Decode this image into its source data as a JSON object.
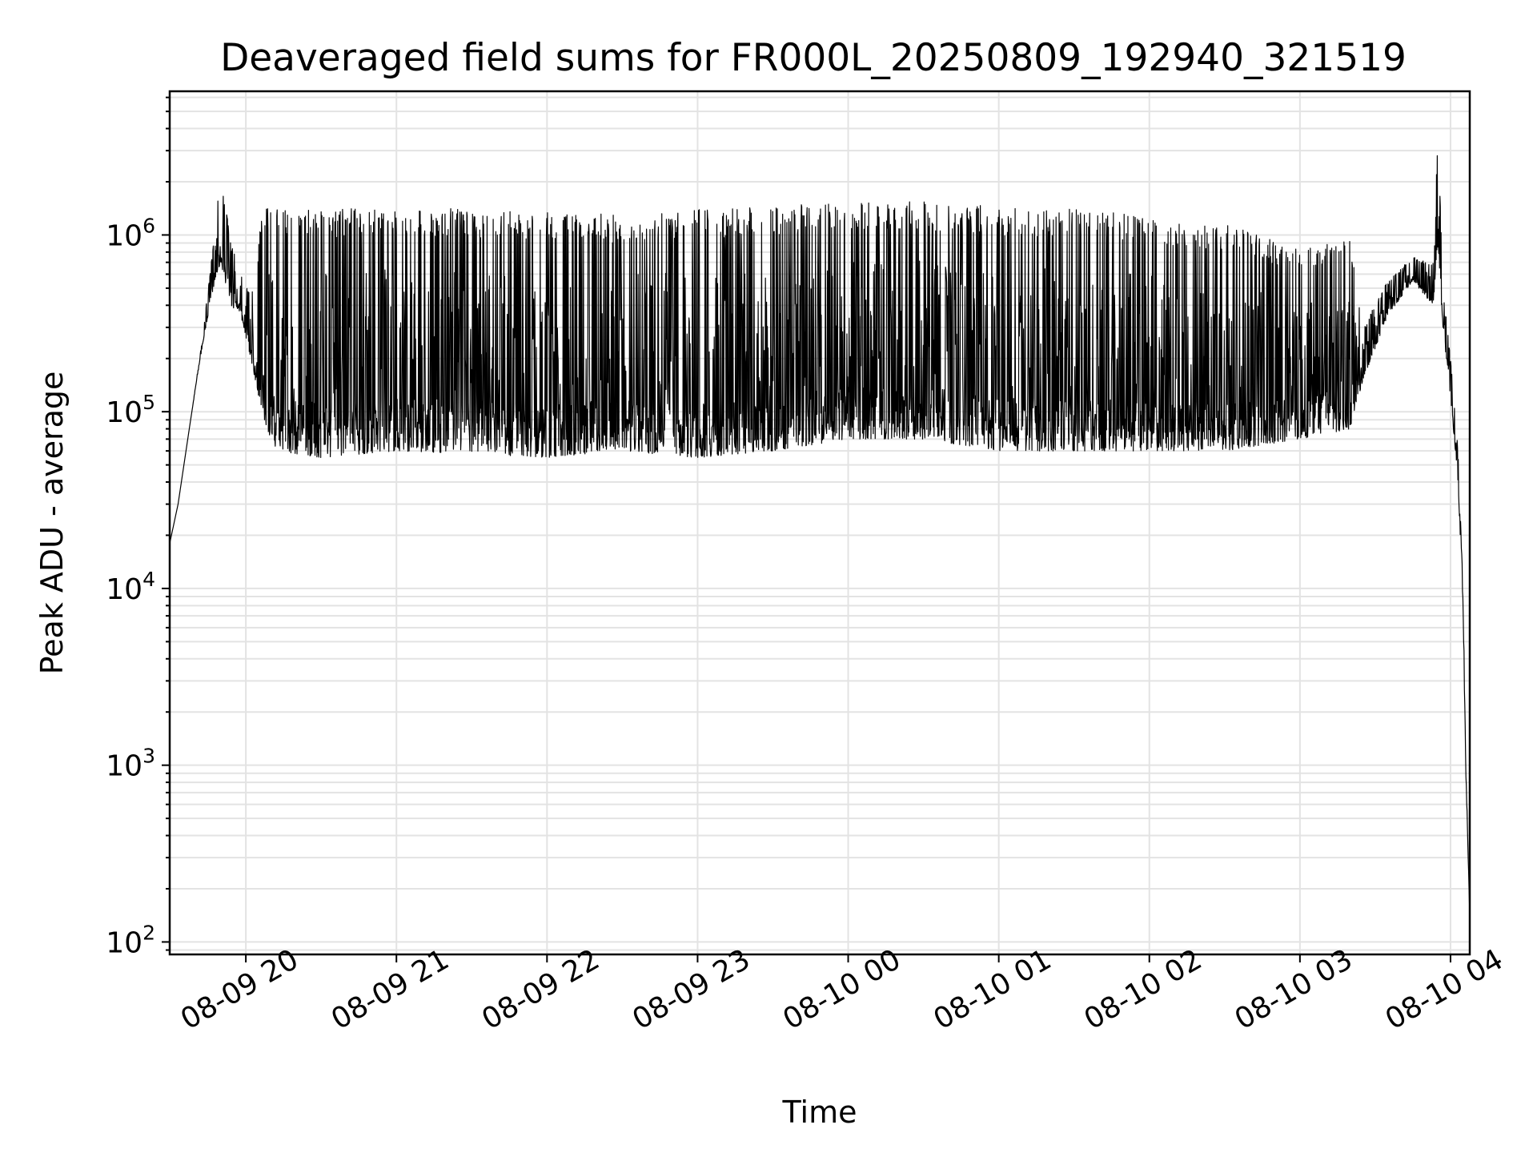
{
  "chart_data": {
    "type": "line",
    "title": "Deaveraged field sums for FR000L_20250809_192940_321519",
    "xlabel": "Time",
    "ylabel": "Peak ADU - average",
    "yscale": "log",
    "grid": true,
    "x_range": [
      "2025-08-09 19:29:40",
      "2025-08-10 04:07:40"
    ],
    "ylim": [
      85,
      6500000
    ],
    "x_ticks": [
      {
        "t": "2025-08-09 20:00",
        "label": "08-09 20"
      },
      {
        "t": "2025-08-09 21:00",
        "label": "08-09 21"
      },
      {
        "t": "2025-08-09 22:00",
        "label": "08-09 22"
      },
      {
        "t": "2025-08-09 23:00",
        "label": "08-09 23"
      },
      {
        "t": "2025-08-10 00:00",
        "label": "08-10 00"
      },
      {
        "t": "2025-08-10 01:00",
        "label": "08-10 01"
      },
      {
        "t": "2025-08-10 02:00",
        "label": "08-10 02"
      },
      {
        "t": "2025-08-10 03:00",
        "label": "08-10 03"
      },
      {
        "t": "2025-08-10 04:00",
        "label": "08-10 04"
      }
    ],
    "y_ticks": [
      {
        "value": 100,
        "base": "10",
        "exp": "2"
      },
      {
        "value": 1000,
        "base": "10",
        "exp": "3"
      },
      {
        "value": 10000,
        "base": "10",
        "exp": "4"
      },
      {
        "value": 100000,
        "base": "10",
        "exp": "5"
      },
      {
        "value": 1000000,
        "base": "10",
        "exp": "6"
      }
    ],
    "series": [
      {
        "color": "#000000",
        "envelope": [
          {
            "t": "2025-08-09 19:29:40",
            "low": 18000,
            "high": 18000
          },
          {
            "t": "2025-08-09 19:33",
            "low": 30000,
            "high": 30000
          },
          {
            "t": "2025-08-09 19:38",
            "low": 90000,
            "high": 90000
          },
          {
            "t": "2025-08-09 19:43",
            "low": 250000,
            "high": 280000
          },
          {
            "t": "2025-08-09 19:47",
            "low": 500000,
            "high": 900000
          },
          {
            "t": "2025-08-09 19:50",
            "low": 700000,
            "high": 2300000
          },
          {
            "t": "2025-08-09 19:54",
            "low": 400000,
            "high": 900000
          },
          {
            "t": "2025-08-09 19:58",
            "low": 350000,
            "high": 600000
          },
          {
            "t": "2025-08-09 20:02",
            "low": 200000,
            "high": 450000
          },
          {
            "t": "2025-08-09 20:07",
            "low": 90000,
            "high": 1450000
          },
          {
            "t": "2025-08-09 20:12",
            "low": 60000,
            "high": 1400000
          },
          {
            "t": "2025-08-09 20:30",
            "low": 55000,
            "high": 1400000
          },
          {
            "t": "2025-08-09 21:00",
            "low": 60000,
            "high": 1450000
          },
          {
            "t": "2025-08-09 21:30",
            "low": 58000,
            "high": 1400000
          },
          {
            "t": "2025-08-09 22:00",
            "low": 55000,
            "high": 1350000
          },
          {
            "t": "2025-08-09 22:30",
            "low": 60000,
            "high": 1300000
          },
          {
            "t": "2025-08-09 23:00",
            "low": 55000,
            "high": 1400000
          },
          {
            "t": "2025-08-09 23:30",
            "low": 60000,
            "high": 1450000
          },
          {
            "t": "2025-08-10 00:00",
            "low": 70000,
            "high": 1550000
          },
          {
            "t": "2025-08-10 00:30",
            "low": 70000,
            "high": 1550000
          },
          {
            "t": "2025-08-10 01:00",
            "low": 60000,
            "high": 1450000
          },
          {
            "t": "2025-08-10 01:30",
            "low": 60000,
            "high": 1400000
          },
          {
            "t": "2025-08-10 02:00",
            "low": 60000,
            "high": 1300000
          },
          {
            "t": "2025-08-10 02:30",
            "low": 60000,
            "high": 1150000
          },
          {
            "t": "2025-08-10 03:00",
            "low": 70000,
            "high": 850000
          },
          {
            "t": "2025-08-10 03:20",
            "low": 80000,
            "high": 1000000
          },
          {
            "t": "2025-08-10 03:25",
            "low": 150000,
            "high": 300000
          },
          {
            "t": "2025-08-10 03:35",
            "low": 350000,
            "high": 550000
          },
          {
            "t": "2025-08-10 03:45",
            "low": 550000,
            "high": 750000
          },
          {
            "t": "2025-08-10 03:53",
            "low": 400000,
            "high": 700000
          },
          {
            "t": "2025-08-10 03:55",
            "low": 800000,
            "high": 3800000
          },
          {
            "t": "2025-08-10 03:57",
            "low": 300000,
            "high": 500000
          },
          {
            "t": "2025-08-10 04:00",
            "low": 120000,
            "high": 200000
          },
          {
            "t": "2025-08-10 04:03",
            "low": 40000,
            "high": 60000
          },
          {
            "t": "2025-08-10 04:05",
            "low": 8000,
            "high": 10000
          },
          {
            "t": "2025-08-10 04:06",
            "low": 1000,
            "high": 1200
          },
          {
            "t": "2025-08-10 04:07:40",
            "low": 140,
            "high": 140
          }
        ]
      }
    ]
  }
}
